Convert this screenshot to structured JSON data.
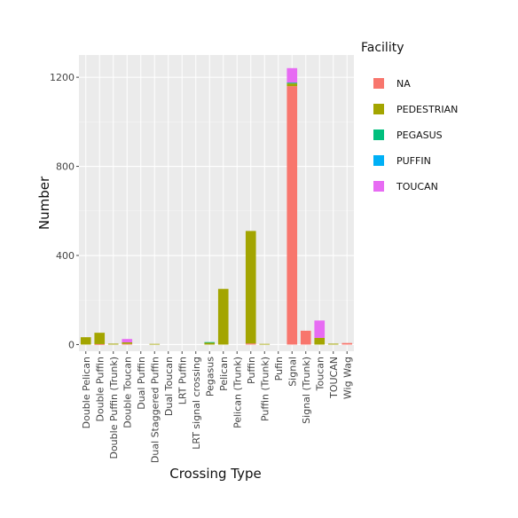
{
  "chart_data": {
    "type": "bar",
    "stacked": true,
    "xlabel": "Crossing Type",
    "ylabel": "Number",
    "ylim": [
      -30,
      1300
    ],
    "yticks": [
      0,
      400,
      800,
      1200
    ],
    "yticklabels": [
      "0",
      "400",
      "800",
      "1200"
    ],
    "grid": true,
    "legend": {
      "title": "Facility",
      "placement": "right"
    },
    "categories": [
      "Double Pelican",
      "Double Puffin",
      "Double Puffin (Trunk)",
      "Double Toucan",
      "Dual Puffin",
      "Dual Staggered Puffin",
      "Dual Toucan",
      "LRT Puffin",
      "LRT signal crossing",
      "Pegasus",
      "Pelican",
      "Pelican (Trunk)",
      "Puffin",
      "Puffin (Trunk)",
      "Pufin",
      "Signal",
      "Signal (Trunk)",
      "Toucan",
      "TOUCAN",
      "Wig Wag"
    ],
    "series": [
      {
        "name": "NA",
        "color": "#F8766D",
        "values": [
          0,
          2,
          0,
          3,
          0,
          0,
          0,
          0,
          0,
          0,
          0,
          0,
          5,
          0,
          0,
          1160,
          62,
          0,
          0,
          7
        ]
      },
      {
        "name": "PEDESTRIAN",
        "color": "#A3A500",
        "values": [
          33,
          51,
          4,
          7,
          0,
          3,
          0,
          0,
          0,
          8,
          250,
          0,
          505,
          3,
          0,
          12,
          0,
          30,
          4,
          0
        ]
      },
      {
        "name": "PEGASUS",
        "color": "#00BF7D",
        "values": [
          0,
          0,
          0,
          0,
          0,
          0,
          0,
          0,
          0,
          3,
          0,
          0,
          0,
          0,
          0,
          4,
          0,
          0,
          0,
          0
        ]
      },
      {
        "name": "PUFFIN",
        "color": "#00B0F6",
        "values": [
          0,
          0,
          0,
          0,
          0,
          0,
          0,
          0,
          0,
          0,
          0,
          0,
          0,
          0,
          0,
          0,
          0,
          0,
          0,
          0
        ]
      },
      {
        "name": "TOUCAN",
        "color": "#E76BF3",
        "values": [
          0,
          0,
          0,
          15,
          0,
          0,
          0,
          0,
          0,
          0,
          0,
          0,
          0,
          0,
          0,
          65,
          0,
          78,
          0,
          0
        ]
      }
    ]
  }
}
